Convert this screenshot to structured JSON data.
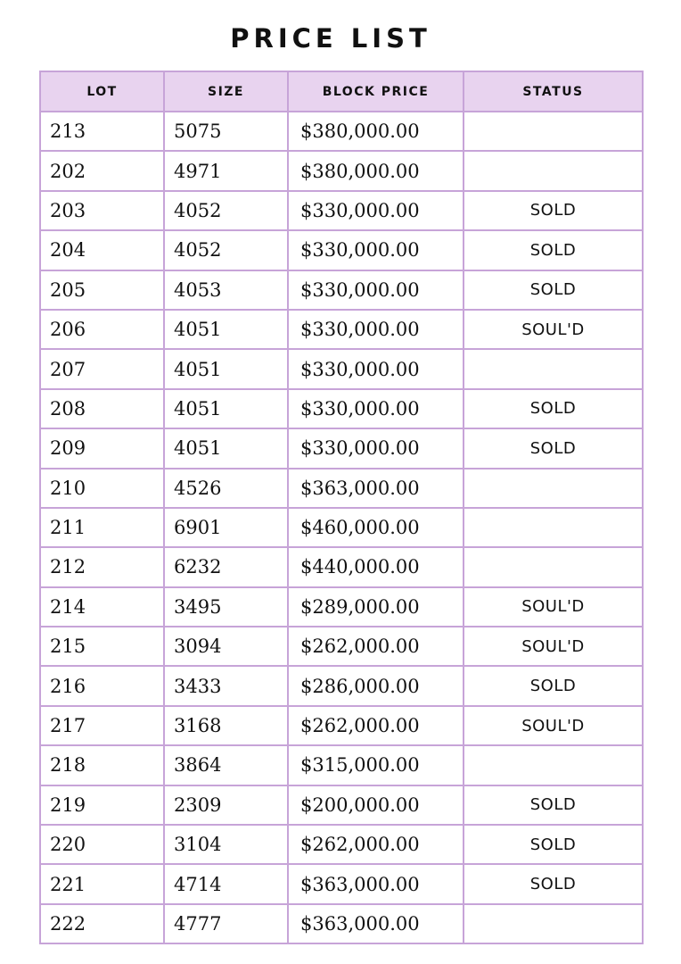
{
  "title": "PRICE LIST",
  "columns": {
    "lot": "LOT",
    "size": "SIZE",
    "price": "BLOCK PRICE",
    "status": "STATUS"
  },
  "rows": [
    {
      "lot": "213",
      "size": "5075",
      "price": "$380,000.00",
      "status": ""
    },
    {
      "lot": "202",
      "size": "4971",
      "price": "$380,000.00",
      "status": ""
    },
    {
      "lot": "203",
      "size": "4052",
      "price": "$330,000.00",
      "status": "SOLD"
    },
    {
      "lot": "204",
      "size": "4052",
      "price": "$330,000.00",
      "status": "SOLD"
    },
    {
      "lot": "205",
      "size": "4053",
      "price": "$330,000.00",
      "status": "SOLD"
    },
    {
      "lot": "206",
      "size": "4051",
      "price": "$330,000.00",
      "status": "SOUL'D"
    },
    {
      "lot": "207",
      "size": "4051",
      "price": "$330,000.00",
      "status": ""
    },
    {
      "lot": "208",
      "size": "4051",
      "price": "$330,000.00",
      "status": "SOLD"
    },
    {
      "lot": "209",
      "size": "4051",
      "price": "$330,000.00",
      "status": "SOLD"
    },
    {
      "lot": "210",
      "size": "4526",
      "price": "$363,000.00",
      "status": ""
    },
    {
      "lot": "211",
      "size": "6901",
      "price": "$460,000.00",
      "status": ""
    },
    {
      "lot": "212",
      "size": "6232",
      "price": "$440,000.00",
      "status": ""
    },
    {
      "lot": "214",
      "size": "3495",
      "price": "$289,000.00",
      "status": "SOUL'D"
    },
    {
      "lot": "215",
      "size": "3094",
      "price": "$262,000.00",
      "status": "SOUL'D"
    },
    {
      "lot": "216",
      "size": "3433",
      "price": "$286,000.00",
      "status": "SOLD"
    },
    {
      "lot": "217",
      "size": "3168",
      "price": "$262,000.00",
      "status": "SOUL'D"
    },
    {
      "lot": "218",
      "size": "3864",
      "price": "$315,000.00",
      "status": ""
    },
    {
      "lot": "219",
      "size": "2309",
      "price": "$200,000.00",
      "status": "SOLD"
    },
    {
      "lot": "220",
      "size": "3104",
      "price": "$262,000.00",
      "status": "SOLD"
    },
    {
      "lot": "221",
      "size": "4714",
      "price": "$363,000.00",
      "status": "SOLD"
    },
    {
      "lot": "222",
      "size": "4777",
      "price": "$363,000.00",
      "status": ""
    }
  ],
  "colors": {
    "header_bg": "#e8d3ef",
    "border": "#c7a4d8",
    "text": "#111111"
  }
}
